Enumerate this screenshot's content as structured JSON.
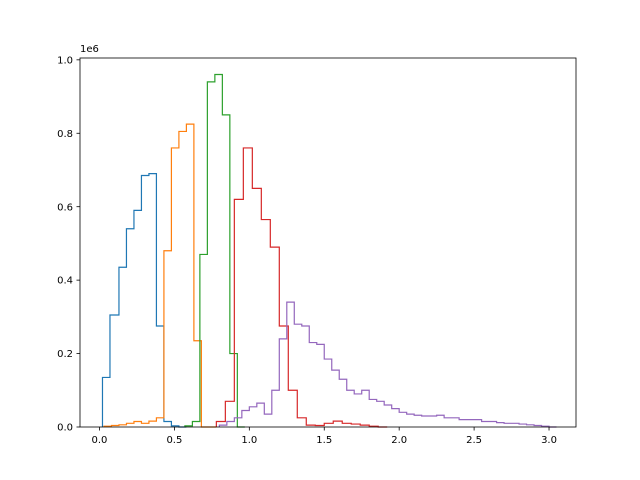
{
  "chart_data": {
    "type": "histogram",
    "x_ticks": [
      0.0,
      0.5,
      1.0,
      1.5,
      2.0,
      2.5,
      3.0
    ],
    "x_tick_labels": [
      "0.0",
      "0.5",
      "1.0",
      "1.5",
      "2.0",
      "2.5",
      "3.0"
    ],
    "y_ticks": [
      0.0,
      0.2,
      0.4,
      0.6,
      0.8,
      1.0
    ],
    "y_tick_labels": [
      "0.0",
      "0.2",
      "0.4",
      "0.6",
      "0.8",
      "1.0"
    ],
    "y_scale_label": "1e6",
    "y_scale": 1000000,
    "xlim": [
      -0.13,
      3.18
    ],
    "ylim": [
      0,
      1.005
    ],
    "grid": false,
    "series": [
      {
        "color": "#1f77b4",
        "edges": [
          0.02,
          0.07,
          0.13,
          0.18,
          0.23,
          0.28,
          0.33,
          0.38,
          0.43,
          0.48,
          0.53,
          0.58
        ],
        "values": [
          0.135,
          0.305,
          0.435,
          0.54,
          0.59,
          0.685,
          0.69,
          0.275,
          0.015,
          0.003,
          0.0
        ]
      },
      {
        "color": "#ff7f0e",
        "edges": [
          0.03,
          0.08,
          0.13,
          0.18,
          0.23,
          0.28,
          0.33,
          0.38,
          0.43,
          0.48,
          0.53,
          0.58,
          0.63,
          0.68,
          0.73,
          0.78
        ],
        "values": [
          0.002,
          0.004,
          0.006,
          0.01,
          0.015,
          0.01,
          0.016,
          0.025,
          0.48,
          0.76,
          0.805,
          0.825,
          0.235,
          0.0,
          0.0
        ]
      },
      {
        "color": "#2ca02c",
        "edges": [
          0.57,
          0.62,
          0.67,
          0.72,
          0.77,
          0.82,
          0.87,
          0.92,
          0.97
        ],
        "values": [
          0.003,
          0.015,
          0.47,
          0.94,
          0.96,
          0.85,
          0.2,
          0.0
        ]
      },
      {
        "color": "#d62728",
        "edges": [
          0.78,
          0.84,
          0.9,
          0.96,
          1.02,
          1.08,
          1.14,
          1.2,
          1.26,
          1.32,
          1.38,
          1.44,
          1.5,
          1.56,
          1.62,
          1.68,
          1.74,
          1.8,
          1.86,
          1.92
        ],
        "values": [
          0.015,
          0.07,
          0.62,
          0.76,
          0.65,
          0.565,
          0.49,
          0.275,
          0.1,
          0.025,
          0.005,
          0.004,
          0.01,
          0.016,
          0.01,
          0.008,
          0.005,
          0.002,
          0.0
        ]
      },
      {
        "color": "#9467bd",
        "edges": [
          0.8,
          0.85,
          0.9,
          0.95,
          1.0,
          1.05,
          1.1,
          1.15,
          1.2,
          1.25,
          1.3,
          1.35,
          1.4,
          1.45,
          1.5,
          1.55,
          1.6,
          1.65,
          1.7,
          1.75,
          1.8,
          1.85,
          1.9,
          1.95,
          2.0,
          2.05,
          2.1,
          2.15,
          2.2,
          2.25,
          2.3,
          2.35,
          2.4,
          2.45,
          2.5,
          2.55,
          2.6,
          2.65,
          2.7,
          2.75,
          2.8,
          2.85,
          2.9,
          2.95,
          3.0,
          3.05
        ],
        "values": [
          0.005,
          0.015,
          0.025,
          0.045,
          0.055,
          0.065,
          0.035,
          0.1,
          0.24,
          0.34,
          0.28,
          0.275,
          0.23,
          0.225,
          0.185,
          0.155,
          0.13,
          0.1,
          0.09,
          0.1,
          0.075,
          0.07,
          0.06,
          0.05,
          0.04,
          0.035,
          0.032,
          0.03,
          0.03,
          0.032,
          0.025,
          0.025,
          0.02,
          0.02,
          0.02,
          0.015,
          0.015,
          0.012,
          0.01,
          0.01,
          0.008,
          0.006,
          0.004,
          0.002,
          0.0
        ]
      }
    ]
  }
}
